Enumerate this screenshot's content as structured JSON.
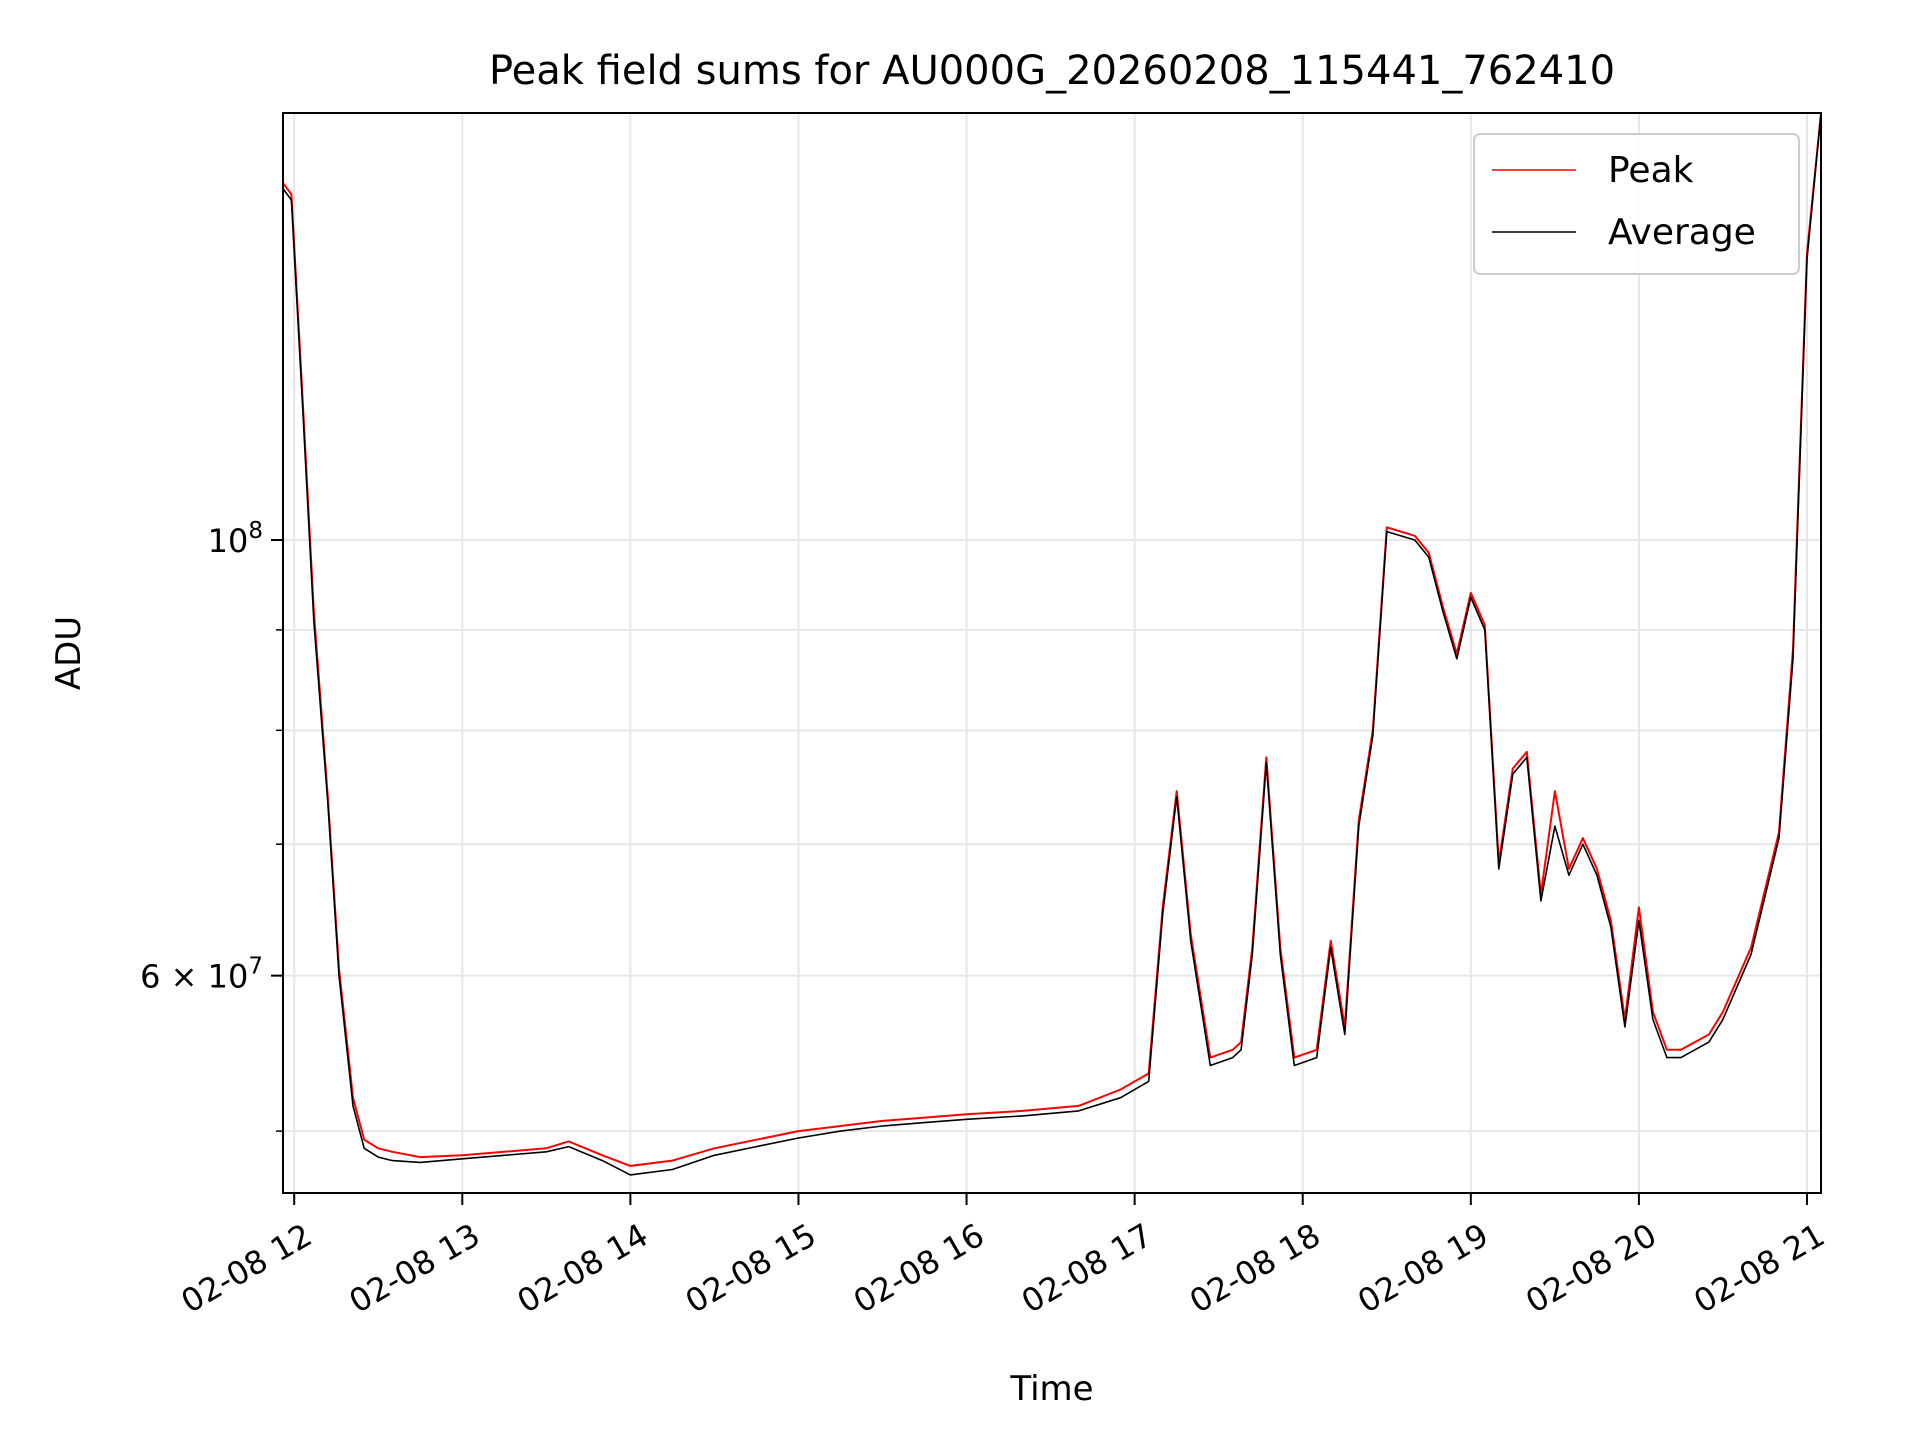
{
  "chart_data": {
    "type": "line",
    "title": "Peak field sums for AU000G_20260208_115441_762410",
    "xlabel": "Time",
    "ylabel": "ADU",
    "y_scale": "log",
    "grid": true,
    "legend_position": "top-right",
    "xlim": [
      "2026-02-08 11:56",
      "2026-02-08 21:05"
    ],
    "ylim": [
      46500000,
      165000000
    ],
    "x_ticks": [
      "02-08 12",
      "02-08 13",
      "02-08 14",
      "02-08 15",
      "02-08 16",
      "02-08 17",
      "02-08 18",
      "02-08 19",
      "02-08 20",
      "02-08 21"
    ],
    "y_tick_labels": [
      {
        "value": 60000000,
        "label": "6 × 10^7",
        "mantissa": "6",
        "base": "10",
        "exponent": "7"
      },
      {
        "value": 100000000,
        "label": "10^8",
        "mantissa": "",
        "base": "10",
        "exponent": "8"
      }
    ],
    "series": [
      {
        "name": "Peak",
        "color": "#ff0000",
        "x": [
          "2026-02-08 11:56",
          "2026-02-08 11:59",
          "2026-02-08 12:03",
          "2026-02-08 12:07",
          "2026-02-08 12:12",
          "2026-02-08 12:16",
          "2026-02-08 12:21",
          "2026-02-08 12:25",
          "2026-02-08 12:30",
          "2026-02-08 12:35",
          "2026-02-08 12:45",
          "2026-02-08 13:00",
          "2026-02-08 13:15",
          "2026-02-08 13:30",
          "2026-02-08 13:38",
          "2026-02-08 13:50",
          "2026-02-08 14:00",
          "2026-02-08 14:15",
          "2026-02-08 14:30",
          "2026-02-08 14:45",
          "2026-02-08 15:00",
          "2026-02-08 15:15",
          "2026-02-08 15:30",
          "2026-02-08 15:45",
          "2026-02-08 16:00",
          "2026-02-08 16:20",
          "2026-02-08 16:40",
          "2026-02-08 16:55",
          "2026-02-08 17:05",
          "2026-02-08 17:10",
          "2026-02-08 17:15",
          "2026-02-08 17:20",
          "2026-02-08 17:27",
          "2026-02-08 17:35",
          "2026-02-08 17:38",
          "2026-02-08 17:42",
          "2026-02-08 17:47",
          "2026-02-08 17:52",
          "2026-02-08 17:57",
          "2026-02-08 18:05",
          "2026-02-08 18:10",
          "2026-02-08 18:15",
          "2026-02-08 18:20",
          "2026-02-08 18:25",
          "2026-02-08 18:30",
          "2026-02-08 18:40",
          "2026-02-08 18:45",
          "2026-02-08 18:50",
          "2026-02-08 18:55",
          "2026-02-08 19:00",
          "2026-02-08 19:05",
          "2026-02-08 19:10",
          "2026-02-08 19:15",
          "2026-02-08 19:20",
          "2026-02-08 19:25",
          "2026-02-08 19:30",
          "2026-02-08 19:35",
          "2026-02-08 19:40",
          "2026-02-08 19:45",
          "2026-02-08 19:50",
          "2026-02-08 19:55",
          "2026-02-08 20:00",
          "2026-02-08 20:05",
          "2026-02-08 20:10",
          "2026-02-08 20:15",
          "2026-02-08 20:20",
          "2026-02-08 20:25",
          "2026-02-08 20:30",
          "2026-02-08 20:40",
          "2026-02-08 20:50",
          "2026-02-08 20:55",
          "2026-02-08 21:00",
          "2026-02-08 21:05"
        ],
        "values": [
          152000000,
          150000000,
          118000000,
          92000000,
          74000000,
          60500000,
          52000000,
          49500000,
          49000000,
          48800000,
          48500000,
          48600000,
          48800000,
          49000000,
          49400000,
          48600000,
          48000000,
          48300000,
          49000000,
          49500000,
          50000000,
          50300000,
          50600000,
          50800000,
          51000000,
          51200000,
          51500000,
          52500000,
          53500000,
          65000000,
          74500000,
          63000000,
          54500000,
          55000000,
          55500000,
          62000000,
          77500000,
          62000000,
          54500000,
          55000000,
          62500000,
          56500000,
          72000000,
          80000000,
          101500000,
          100500000,
          98500000,
          92500000,
          87500000,
          94000000,
          90500000,
          68500000,
          76500000,
          78000000,
          66000000,
          74500000,
          68000000,
          70500000,
          68000000,
          64000000,
          57000000,
          65000000,
          57500000,
          55000000,
          55000000,
          55500000,
          56000000,
          57500000,
          62000000,
          71000000,
          88000000,
          140000000,
          165000000
        ]
      },
      {
        "name": "Average",
        "color": "#000000",
        "x": [
          "2026-02-08 11:56",
          "2026-02-08 11:59",
          "2026-02-08 12:03",
          "2026-02-08 12:07",
          "2026-02-08 12:12",
          "2026-02-08 12:16",
          "2026-02-08 12:21",
          "2026-02-08 12:25",
          "2026-02-08 12:30",
          "2026-02-08 12:35",
          "2026-02-08 12:45",
          "2026-02-08 13:00",
          "2026-02-08 13:15",
          "2026-02-08 13:30",
          "2026-02-08 13:38",
          "2026-02-08 13:50",
          "2026-02-08 14:00",
          "2026-02-08 14:15",
          "2026-02-08 14:30",
          "2026-02-08 14:45",
          "2026-02-08 15:00",
          "2026-02-08 15:15",
          "2026-02-08 15:30",
          "2026-02-08 15:45",
          "2026-02-08 16:00",
          "2026-02-08 16:20",
          "2026-02-08 16:40",
          "2026-02-08 16:55",
          "2026-02-08 17:05",
          "2026-02-08 17:10",
          "2026-02-08 17:15",
          "2026-02-08 17:20",
          "2026-02-08 17:27",
          "2026-02-08 17:35",
          "2026-02-08 17:38",
          "2026-02-08 17:42",
          "2026-02-08 17:47",
          "2026-02-08 17:52",
          "2026-02-08 17:57",
          "2026-02-08 18:05",
          "2026-02-08 18:10",
          "2026-02-08 18:15",
          "2026-02-08 18:20",
          "2026-02-08 18:25",
          "2026-02-08 18:30",
          "2026-02-08 18:40",
          "2026-02-08 18:45",
          "2026-02-08 18:50",
          "2026-02-08 18:55",
          "2026-02-08 19:00",
          "2026-02-08 19:05",
          "2026-02-08 19:10",
          "2026-02-08 19:15",
          "2026-02-08 19:20",
          "2026-02-08 19:25",
          "2026-02-08 19:30",
          "2026-02-08 19:35",
          "2026-02-08 19:40",
          "2026-02-08 19:45",
          "2026-02-08 19:50",
          "2026-02-08 19:55",
          "2026-02-08 20:00",
          "2026-02-08 20:05",
          "2026-02-08 20:10",
          "2026-02-08 20:15",
          "2026-02-08 20:20",
          "2026-02-08 20:25",
          "2026-02-08 20:30",
          "2026-02-08 20:40",
          "2026-02-08 20:50",
          "2026-02-08 20:55",
          "2026-02-08 21:00",
          "2026-02-08 21:05"
        ],
        "values": [
          151000000,
          149000000,
          117000000,
          91000000,
          73500000,
          60000000,
          51500000,
          49000000,
          48500000,
          48300000,
          48200000,
          48400000,
          48600000,
          48800000,
          49100000,
          48300000,
          47500000,
          47800000,
          48600000,
          49100000,
          49600000,
          50000000,
          50300000,
          50500000,
          50700000,
          50900000,
          51200000,
          52000000,
          53000000,
          64500000,
          74000000,
          62500000,
          54000000,
          54500000,
          55000000,
          61500000,
          77000000,
          61500000,
          54000000,
          54500000,
          62000000,
          56000000,
          71500000,
          79500000,
          101000000,
          100000000,
          98000000,
          92000000,
          87000000,
          93500000,
          90000000,
          68000000,
          76000000,
          77500000,
          65500000,
          71500000,
          67500000,
          70000000,
          67500000,
          63500000,
          56500000,
          64000000,
          57000000,
          54500000,
          54500000,
          55000000,
          55500000,
          57000000,
          61500000,
          70500000,
          87000000,
          139000000,
          165000000
        ]
      }
    ]
  }
}
